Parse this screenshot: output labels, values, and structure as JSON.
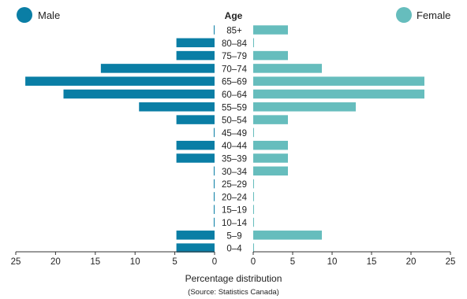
{
  "chart_data": {
    "type": "bar",
    "orientation": "horizontal-population-pyramid",
    "categories": [
      "85+",
      "80–84",
      "75–79",
      "70–74",
      "65–69",
      "60–64",
      "55–59",
      "50–54",
      "45–49",
      "40–44",
      "35–39",
      "30–34",
      "25–29",
      "20–24",
      "15–19",
      "10–14",
      "5–9",
      "0–4"
    ],
    "series": [
      {
        "name": "Male",
        "color": "#0a7ea5",
        "values": [
          0.1,
          4.8,
          4.8,
          14.3,
          23.8,
          19.0,
          9.5,
          4.8,
          0.1,
          4.8,
          4.8,
          0.1,
          0.1,
          0.1,
          0.1,
          0.1,
          4.8,
          4.8
        ]
      },
      {
        "name": "Female",
        "color": "#66bdbd",
        "values": [
          4.4,
          0.1,
          4.4,
          8.7,
          21.7,
          21.7,
          13.0,
          4.4,
          0.1,
          4.4,
          4.4,
          4.4,
          0.1,
          0.1,
          0.1,
          0.1,
          8.7,
          0.1
        ]
      }
    ],
    "center_label": "Age",
    "xlabel": "Percentage distribution",
    "source": "(Source: Statistics Canada)",
    "xlim": [
      0,
      25
    ],
    "male_ticks": [
      "25",
      "20",
      "15",
      "10",
      "5",
      "0"
    ],
    "female_ticks": [
      "0",
      "5",
      "10",
      "15",
      "20",
      "25"
    ],
    "grid": false,
    "legend_placement": "top-left and top-right"
  }
}
